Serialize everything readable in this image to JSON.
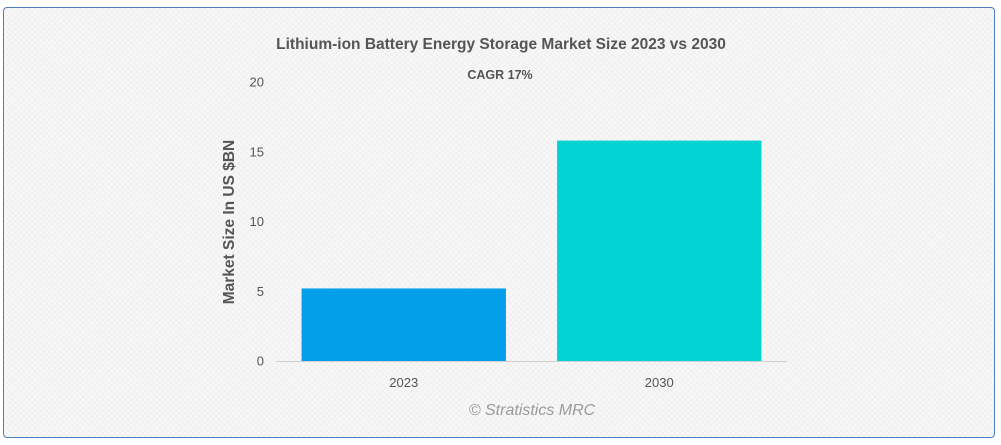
{
  "chart_data": {
    "type": "bar",
    "title": "Lithium-ion Battery Energy Storage Market Size 2023 vs 2030",
    "subtitle": "CAGR 17%",
    "ylabel": "Market Size In US $BN",
    "xlabel": "",
    "categories": [
      "2023",
      "2030"
    ],
    "values": [
      5.2,
      15.8
    ],
    "colors": [
      "#039fea",
      "#03d3d3"
    ],
    "ylim": [
      0,
      20
    ],
    "yticks": [
      "0",
      "5",
      "10",
      "15",
      "20"
    ],
    "grid": false,
    "legend": "none"
  },
  "credit": "© Stratistics MRC"
}
